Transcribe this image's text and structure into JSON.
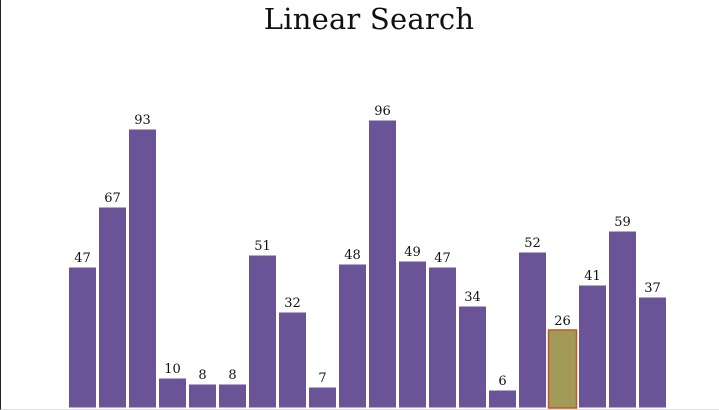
{
  "title": "Linear Search",
  "colors": {
    "bar": "#6b5397",
    "bar_border": "#ffffff",
    "highlight_fill": "#a39a5a",
    "highlight_border": "#c2571f",
    "text": "#111111"
  },
  "chart_data": {
    "type": "bar",
    "title": "Linear Search",
    "values": [
      47,
      67,
      93,
      10,
      8,
      8,
      51,
      32,
      7,
      48,
      96,
      49,
      47,
      34,
      6,
      52,
      26,
      41,
      59,
      37
    ],
    "highlight_index": 16,
    "show_value_labels": true,
    "grid": false
  }
}
